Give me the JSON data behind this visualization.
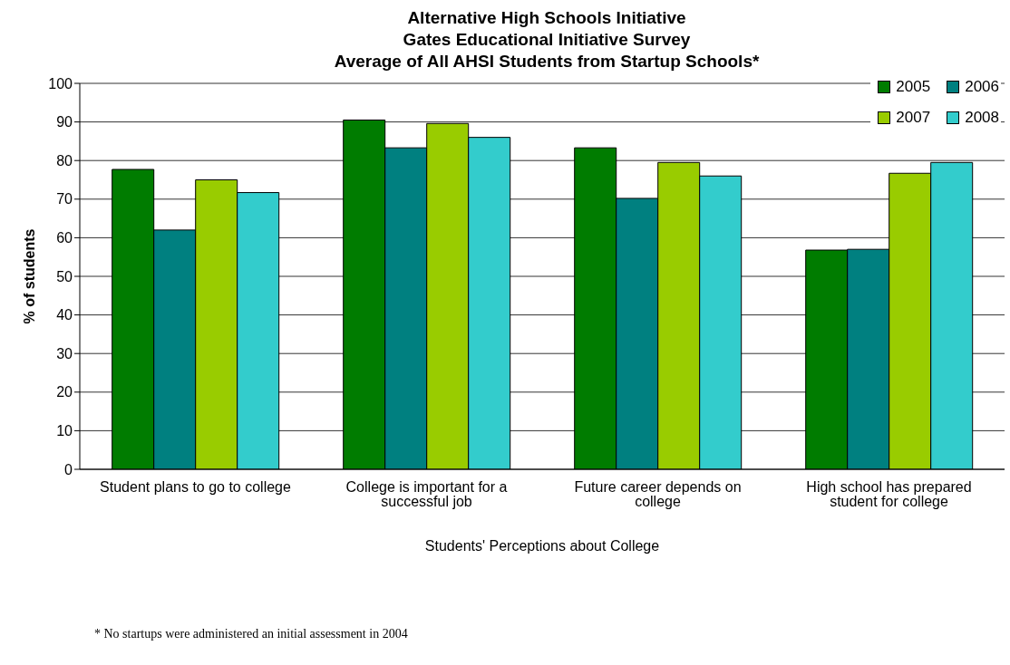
{
  "chart_data": {
    "type": "bar",
    "title": "Alternative High Schools Initiative\nGates Educational Initiative Survey\nAverage of All AHSI Students from Startup Schools*",
    "categories": [
      "Student plans to go to college",
      "College is important for a successful job",
      "Future career depends on college",
      "High school has prepared student for college"
    ],
    "series": [
      {
        "name": "2005",
        "color": "#007c00",
        "values": [
          77.7,
          90.5,
          83.3,
          56.8
        ]
      },
      {
        "name": "2006",
        "color": "#008080",
        "values": [
          62,
          83.3,
          70.2,
          57
        ]
      },
      {
        "name": "2007",
        "color": "#99cc00",
        "values": [
          75,
          89.6,
          79.5,
          76.7
        ]
      },
      {
        "name": "2008",
        "color": "#33cccc",
        "values": [
          71.7,
          86,
          76,
          79.5
        ]
      }
    ],
    "xlabel": "Students' Perceptions about College",
    "ylabel": "% of students",
    "ylim": [
      0,
      100
    ],
    "yticks": [
      0,
      10,
      20,
      30,
      40,
      50,
      60,
      70,
      80,
      90,
      100
    ],
    "grid": "y",
    "legend": "top right",
    "annotations": [
      "* No startups were administered an initial assessment in 2004"
    ]
  }
}
